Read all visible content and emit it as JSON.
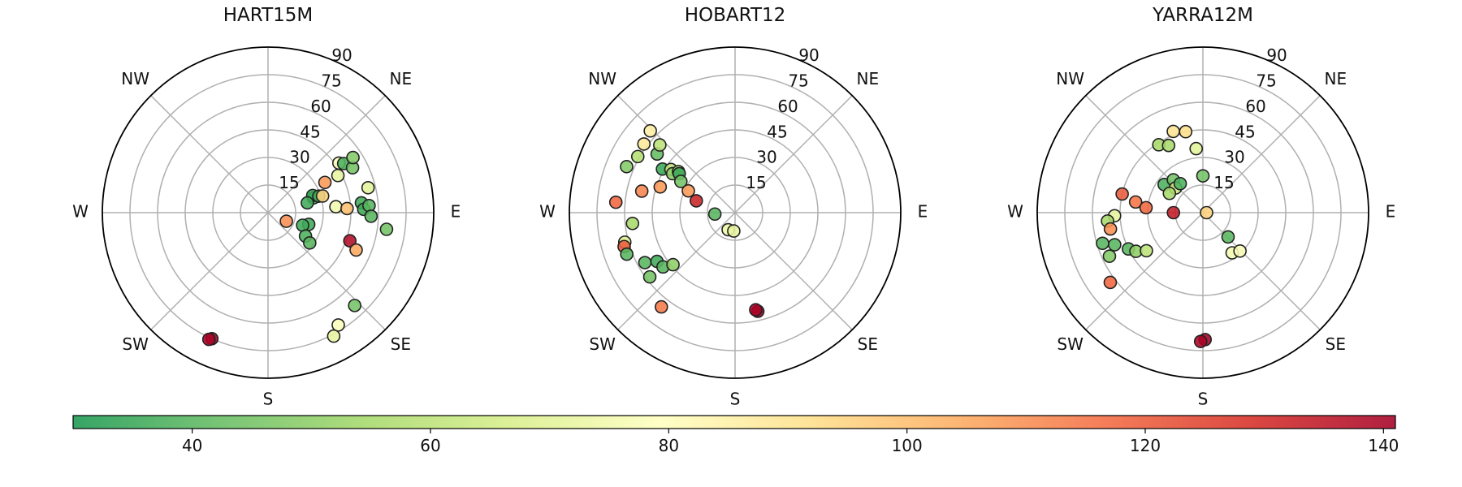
{
  "chart_data": {
    "type": "scatter",
    "projection": "polar",
    "radial_ticks": [
      15,
      30,
      45,
      60,
      75,
      90
    ],
    "r_max": 90,
    "direction_labels": [
      "E",
      "NE",
      "NW",
      "W",
      "SW",
      "S",
      "SE"
    ],
    "colormap": {
      "name": "RdYlGn_r",
      "range": [
        30,
        141
      ],
      "ticks": [
        40,
        60,
        80,
        100,
        120,
        140
      ],
      "stops": [
        "#1a9850",
        "#66bd63",
        "#a6d96a",
        "#d9ef8b",
        "#ffffbf",
        "#fee08b",
        "#fdae61",
        "#f46d43",
        "#d73027",
        "#a50026"
      ]
    },
    "panels": [
      {
        "title": "HART15M",
        "points": [
          {
            "az": 62,
            "r": 43,
            "c": 72
          },
          {
            "az": 55,
            "r": 47,
            "c": 78
          },
          {
            "az": 57,
            "r": 49,
            "c": 38
          },
          {
            "az": 62,
            "r": 52,
            "c": 45
          },
          {
            "az": 57,
            "r": 55,
            "c": 48
          },
          {
            "az": 76,
            "r": 56,
            "c": 70
          },
          {
            "az": 62,
            "r": 35,
            "c": 108
          },
          {
            "az": 72,
            "r": 26,
            "c": 35
          },
          {
            "az": 69,
            "r": 26,
            "c": 35
          },
          {
            "az": 72,
            "r": 29,
            "c": 36
          },
          {
            "az": 76,
            "r": 22,
            "c": 36
          },
          {
            "az": 73,
            "r": 31,
            "c": 95
          },
          {
            "az": 85,
            "r": 37,
            "c": 75
          },
          {
            "az": 87,
            "r": 43,
            "c": 100
          },
          {
            "az": 84,
            "r": 51,
            "c": 36
          },
          {
            "az": 88,
            "r": 52,
            "c": 36
          },
          {
            "az": 86,
            "r": 55,
            "c": 40
          },
          {
            "az": 92,
            "r": 56,
            "c": 40
          },
          {
            "az": 98,
            "r": 65,
            "c": 45
          },
          {
            "az": 106,
            "r": 23,
            "c": 36
          },
          {
            "az": 110,
            "r": 20,
            "c": 36
          },
          {
            "az": 122,
            "r": 24,
            "c": 38
          },
          {
            "az": 126,
            "r": 28,
            "c": 40
          },
          {
            "az": 109,
            "r": 47,
            "c": 138
          },
          {
            "az": 113,
            "r": 52,
            "c": 105
          },
          {
            "az": 137,
            "r": 69,
            "c": 45
          },
          {
            "az": 148,
            "r": 72,
            "c": 78
          },
          {
            "az": 152,
            "r": 76,
            "c": 72
          },
          {
            "az": 115,
            "r": 11,
            "c": 110
          },
          {
            "az": 204,
            "r": 75,
            "c": 141
          },
          {
            "az": 205,
            "r": 76,
            "c": 140
          }
        ]
      },
      {
        "title": "HOBART12",
        "points": [
          {
            "az": 275,
            "r": 65,
            "c": 118
          },
          {
            "az": 293,
            "r": 64,
            "c": 48
          },
          {
            "az": 300,
            "r": 61,
            "c": 58
          },
          {
            "az": 307,
            "r": 62,
            "c": 88
          },
          {
            "az": 314,
            "r": 64,
            "c": 86
          },
          {
            "az": 307,
            "r": 53,
            "c": 42
          },
          {
            "az": 312,
            "r": 55,
            "c": 60
          },
          {
            "az": 301,
            "r": 46,
            "c": 35
          },
          {
            "az": 304,
            "r": 42,
            "c": 62
          },
          {
            "az": 302,
            "r": 40,
            "c": 50
          },
          {
            "az": 306,
            "r": 38,
            "c": 55
          },
          {
            "az": 305,
            "r": 37,
            "c": 35
          },
          {
            "az": 300,
            "r": 34,
            "c": 45
          },
          {
            "az": 289,
            "r": 43,
            "c": 108
          },
          {
            "az": 283,
            "r": 52,
            "c": 112
          },
          {
            "az": 287,
            "r": 22,
            "c": 132
          },
          {
            "az": 295,
            "r": 28,
            "c": 108
          },
          {
            "az": 264,
            "r": 56,
            "c": 55
          },
          {
            "az": 255,
            "r": 62,
            "c": 68
          },
          {
            "az": 253,
            "r": 63,
            "c": 120
          },
          {
            "az": 249,
            "r": 63,
            "c": 40
          },
          {
            "az": 241,
            "r": 56,
            "c": 40
          },
          {
            "az": 238,
            "r": 50,
            "c": 36
          },
          {
            "az": 233,
            "r": 58,
            "c": 45
          },
          {
            "az": 233,
            "r": 49,
            "c": 40
          },
          {
            "az": 230,
            "r": 44,
            "c": 50
          },
          {
            "az": 218,
            "r": 65,
            "c": 114
          },
          {
            "az": 266,
            "r": 11,
            "c": 40
          },
          {
            "az": 202,
            "r": 10,
            "c": 74
          },
          {
            "az": 184,
            "r": 10,
            "c": 72
          },
          {
            "az": 167,
            "r": 55,
            "c": 141
          },
          {
            "az": 168,
            "r": 54,
            "c": 140
          }
        ]
      },
      {
        "title": "YARRA12M",
        "points": [
          {
            "az": 283,
            "r": 45,
            "c": 120
          },
          {
            "az": 327,
            "r": 44,
            "c": 55
          },
          {
            "az": 333,
            "r": 41,
            "c": 55
          },
          {
            "az": 340,
            "r": 47,
            "c": 90
          },
          {
            "az": 348,
            "r": 45,
            "c": 92
          },
          {
            "az": 354,
            "r": 35,
            "c": 70
          },
          {
            "az": 306,
            "r": 26,
            "c": 38
          },
          {
            "az": 318,
            "r": 24,
            "c": 45
          },
          {
            "az": 312,
            "r": 20,
            "c": 65
          },
          {
            "az": 322,
            "r": 20,
            "c": 38
          },
          {
            "az": 300,
            "r": 21,
            "c": 55
          },
          {
            "az": 0,
            "r": 20,
            "c": 45
          },
          {
            "az": 279,
            "r": 37,
            "c": 115
          },
          {
            "az": 275,
            "r": 31,
            "c": 118
          },
          {
            "az": 268,
            "r": 48,
            "c": 72
          },
          {
            "az": 265,
            "r": 52,
            "c": 55
          },
          {
            "az": 260,
            "r": 51,
            "c": 110
          },
          {
            "az": 253,
            "r": 57,
            "c": 40
          },
          {
            "az": 250,
            "r": 51,
            "c": 40
          },
          {
            "az": 244,
            "r": 45,
            "c": 40
          },
          {
            "az": 240,
            "r": 42,
            "c": 50
          },
          {
            "az": 236,
            "r": 37,
            "c": 60
          },
          {
            "az": 245,
            "r": 56,
            "c": 48
          },
          {
            "az": 233,
            "r": 63,
            "c": 118
          },
          {
            "az": 90,
            "r": 2,
            "c": 95
          },
          {
            "az": 270,
            "r": 16,
            "c": 134
          },
          {
            "az": 134,
            "r": 19,
            "c": 40
          },
          {
            "az": 144,
            "r": 27,
            "c": 76
          },
          {
            "az": 136,
            "r": 29,
            "c": 78
          },
          {
            "az": 179,
            "r": 69,
            "c": 141
          },
          {
            "az": 181,
            "r": 70,
            "c": 140
          }
        ]
      }
    ]
  }
}
